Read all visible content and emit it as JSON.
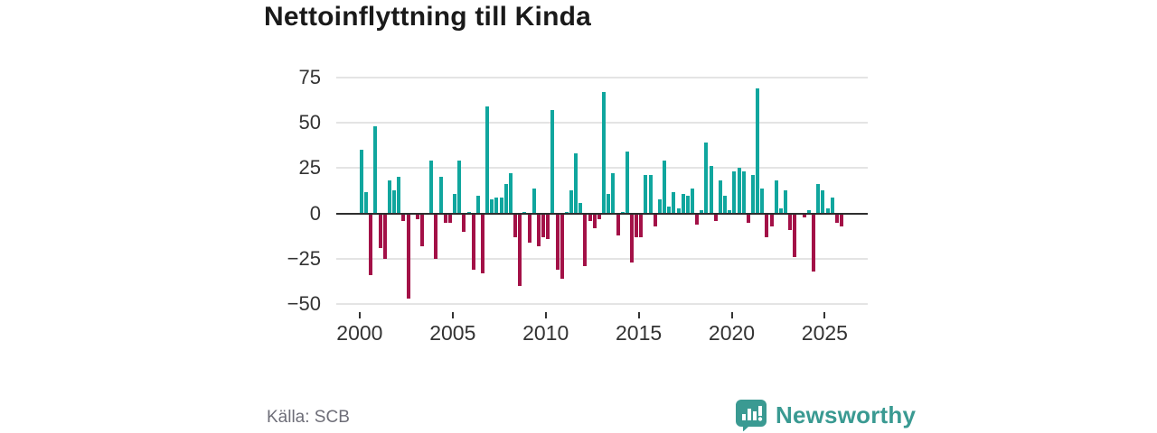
{
  "title": "Nettoinflyttning till Kinda",
  "source": "Källa: SCB",
  "branding": {
    "name": "Newsworthy",
    "icon": "bar-chart-speech-bubble-icon",
    "color": "#3a9a92"
  },
  "colors": {
    "positive_bar": "#10a69e",
    "negative_bar": "#a31147",
    "zero_axis": "#2e2e2e",
    "gridline": "#e4e4e4",
    "tick_text": "#333333",
    "source_text": "#6e6e78"
  },
  "chart_data": {
    "type": "bar",
    "title": "Nettoinflyttning till Kinda",
    "frequency": "quarterly",
    "start": "2000 Q1",
    "end": "2025 Q4",
    "x_tick_labels": [
      "2000",
      "2005",
      "2010",
      "2015",
      "2020",
      "2025"
    ],
    "y_ticks": [
      75,
      50,
      25,
      0,
      -25,
      -50
    ],
    "y_tick_labels": [
      "75",
      "50",
      "25",
      "0",
      "−25",
      "−50"
    ],
    "ylim": [
      -50,
      75
    ],
    "grid": true,
    "values": [
      35,
      12,
      -34,
      48,
      -19,
      -25,
      18,
      13,
      20,
      -4,
      -47,
      0,
      -3,
      -18,
      0,
      29,
      -25,
      20,
      -5,
      -5,
      11,
      29,
      -10,
      1,
      -31,
      10,
      -33,
      59,
      8,
      9,
      9,
      16,
      22,
      -13,
      -40,
      1,
      -16,
      14,
      -18,
      -13,
      -14,
      57,
      -31,
      -36,
      1,
      13,
      33,
      6,
      -29,
      -4,
      -8,
      -3,
      67,
      11,
      22,
      -12,
      1,
      34,
      -27,
      -13,
      -13,
      21,
      21,
      -7,
      8,
      29,
      4,
      12,
      3,
      11,
      10,
      14,
      -6,
      2,
      39,
      26,
      -4,
      18,
      10,
      2,
      23,
      25,
      23,
      -5,
      21,
      69,
      14,
      -13,
      -7,
      18,
      3,
      13,
      -9,
      -24,
      0,
      -2,
      2,
      -32,
      16,
      13,
      3,
      9,
      -5,
      -7
    ]
  }
}
